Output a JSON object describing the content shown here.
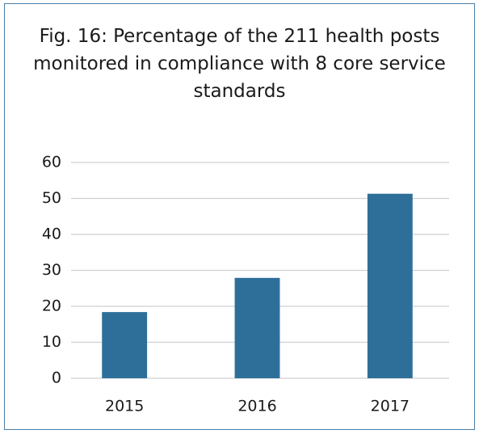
{
  "chart_data": {
    "type": "bar",
    "title": "Fig. 16: Percentage of the 211 health posts monitored in compliance with 8 core service standards",
    "categories": [
      "2015",
      "2016",
      "2017"
    ],
    "values": [
      18.4,
      27.9,
      51.3
    ],
    "color": "#2e6f9a",
    "ylim": [
      0,
      60
    ],
    "yticks": [
      0,
      10,
      20,
      30,
      40,
      50,
      60
    ],
    "grid": true
  }
}
